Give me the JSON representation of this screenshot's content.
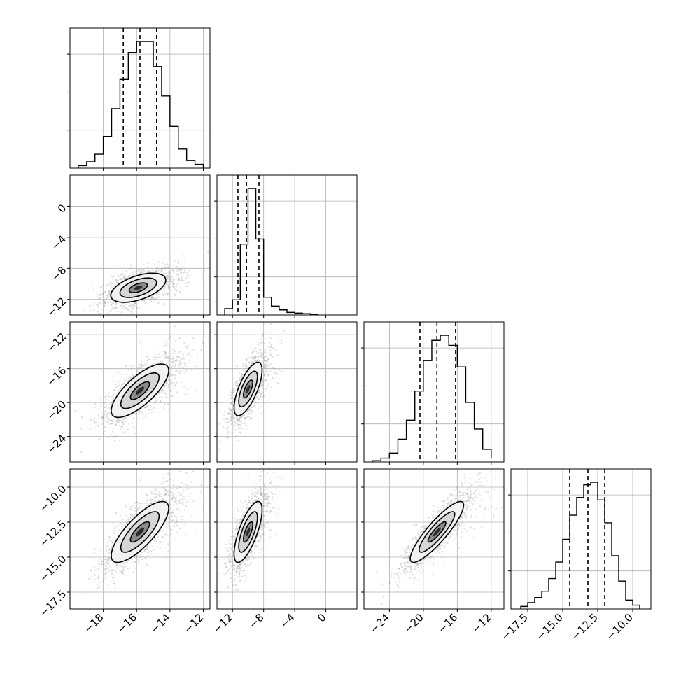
{
  "chart_data": {
    "type": "corner",
    "grid": true,
    "variables": [
      {
        "range": [
          -20,
          -11.6
        ],
        "ticks": [
          -18,
          -16,
          -14,
          -12
        ],
        "tick_labels": [
          "−18",
          "−16",
          "−14",
          "−12"
        ]
      },
      {
        "range": [
          -14,
          4
        ],
        "ticks": [
          -12,
          -8,
          -4,
          0
        ],
        "tick_labels": [
          "−12",
          "−8",
          "−4",
          "0"
        ]
      },
      {
        "range": [
          -27,
          -10.5
        ],
        "ticks": [
          -24,
          -20,
          -16,
          -12
        ],
        "tick_labels": [
          "−24",
          "−20",
          "−16",
          "−12"
        ]
      },
      {
        "range": [
          -18.7,
          -8.7
        ],
        "ticks": [
          -17.5,
          -15,
          -12.5,
          -10
        ],
        "tick_labels": [
          "−17.5",
          "−15.0",
          "−12.5",
          "−10.0"
        ]
      }
    ],
    "histograms": [
      {
        "bin_edges": [
          -19.5,
          -19,
          -18.5,
          -18,
          -17.5,
          -17,
          -16.5,
          -16,
          -15.5,
          -15,
          -14.5,
          -14,
          -13.5,
          -13,
          -12.5,
          -12
        ],
        "counts": [
          2,
          5,
          11,
          25,
          47,
          70,
          91,
          100,
          100,
          80,
          57,
          33,
          15,
          6,
          3
        ],
        "quantiles": [
          -16.8,
          -15.8,
          -14.8
        ]
      },
      {
        "bin_edges": [
          -13,
          -12,
          -11,
          -10,
          -9,
          -8,
          -7,
          -6,
          -5,
          -4,
          -3,
          -2,
          -1
        ],
        "counts": [
          5,
          12,
          56,
          100,
          60,
          14,
          7,
          4,
          2,
          1.5,
          1,
          0.5
        ],
        "quantiles": [
          -11.3,
          -10.2,
          -8.6
        ]
      },
      {
        "bin_edges": [
          -26,
          -25,
          -24,
          -23,
          -22,
          -21,
          -20,
          -19,
          -18,
          -17,
          -16,
          -15,
          -14,
          -13,
          -12
        ],
        "counts": [
          1,
          3,
          7,
          18,
          33,
          56,
          80,
          96,
          100,
          92,
          75,
          47,
          26,
          10,
          3
        ],
        "quantiles": [
          -20.4,
          -18.4,
          -16.2
        ]
      },
      {
        "bin_edges": [
          -18,
          -17.5,
          -17,
          -16.5,
          -16,
          -15.5,
          -15,
          -14.5,
          -14,
          -13.5,
          -13,
          -12.5,
          -12,
          -11.5,
          -11,
          -10.5,
          -10,
          -9.5
        ],
        "counts": [
          2,
          5,
          9,
          14,
          24,
          37,
          55,
          74,
          88,
          98,
          100,
          86,
          68,
          42,
          22,
          7,
          3
        ],
        "quantiles": [
          -14.5,
          -13.2,
          -12.0
        ]
      }
    ],
    "correlations": [
      {
        "pair": [
          1,
          0
        ],
        "center": [
          -15.9,
          -10.5
        ],
        "sd": [
          1.1,
          1.25
        ],
        "rho": 0.52
      },
      {
        "pair": [
          2,
          0
        ],
        "center": [
          -15.8,
          -18.6
        ],
        "sd": [
          1.15,
          2.1
        ],
        "rho": 0.75
      },
      {
        "pair": [
          2,
          1
        ],
        "center": [
          -10.0,
          -18.4
        ],
        "sd": [
          1.2,
          2.1
        ],
        "rho": 0.7
      },
      {
        "pair": [
          3,
          0
        ],
        "center": [
          -15.8,
          -13.2
        ],
        "sd": [
          1.15,
          1.45
        ],
        "rho": 0.78
      },
      {
        "pair": [
          3,
          1
        ],
        "center": [
          -10.0,
          -13.2
        ],
        "sd": [
          1.2,
          1.45
        ],
        "rho": 0.72
      },
      {
        "pair": [
          3,
          2
        ],
        "center": [
          -18.4,
          -13.2
        ],
        "sd": [
          2.1,
          1.45
        ],
        "rho": 0.88
      }
    ],
    "contour_levels_sigma": [
      0.5,
      1.0,
      1.5
    ]
  }
}
